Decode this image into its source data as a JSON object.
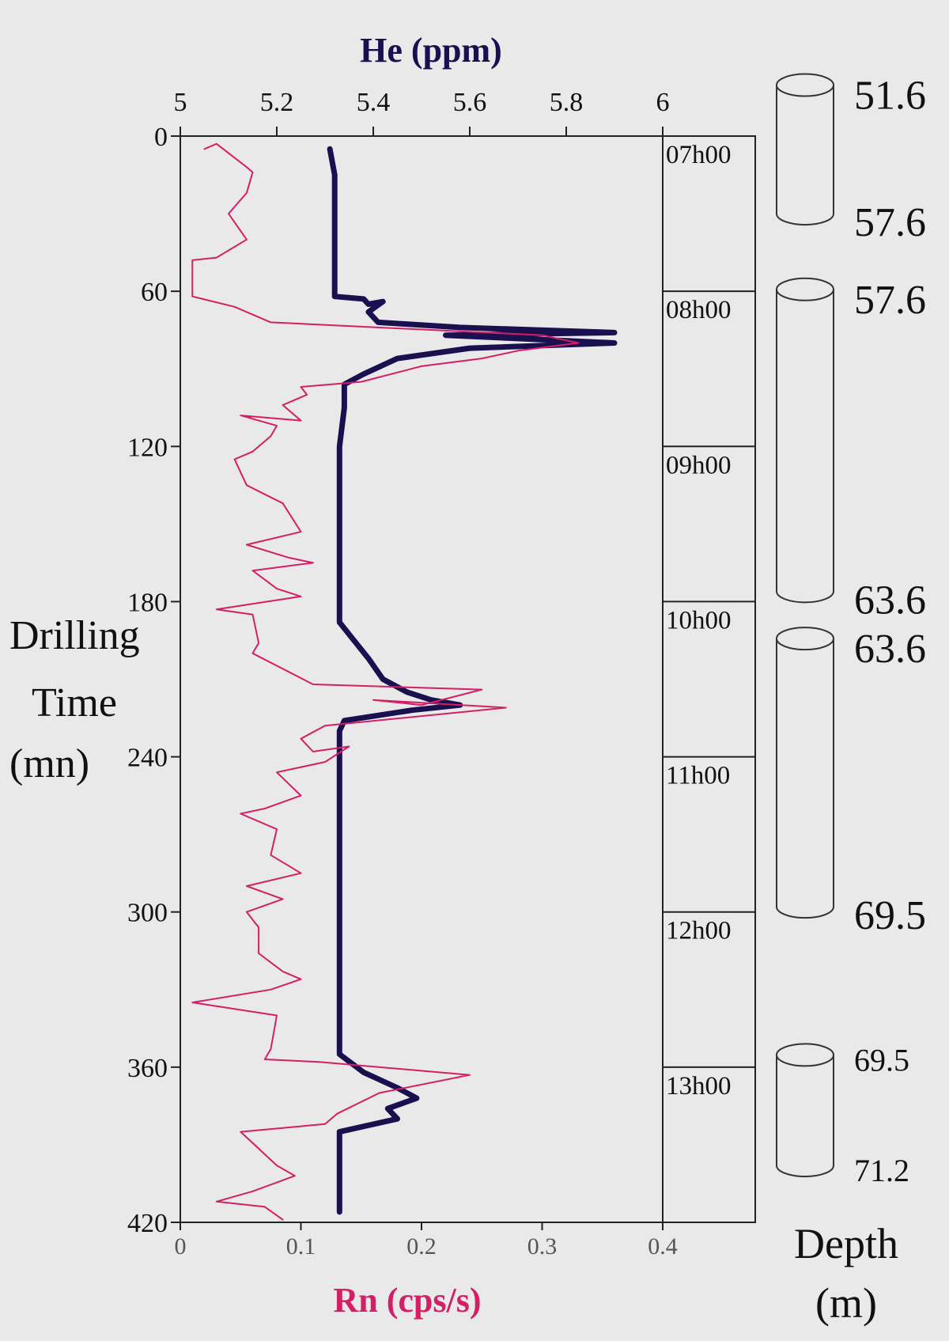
{
  "chart_data": {
    "type": "line",
    "orientation": "vertical-depth-log",
    "title_top_axis": "He (ppm)",
    "title_bottom_axis": "Rn (cps/s)",
    "ylabel_lines": [
      "Drilling",
      "Time",
      "(mn)"
    ],
    "y_axis": {
      "range": [
        0,
        420
      ],
      "ticks": [
        0,
        60,
        120,
        180,
        240,
        300,
        360,
        420
      ],
      "tick_labels": [
        "0",
        "60",
        "120",
        "180",
        "240",
        "300",
        "360",
        "420"
      ],
      "reversed": true
    },
    "top_axis": {
      "label": "He (ppm)",
      "range": [
        5,
        6
      ],
      "ticks": [
        5,
        5.2,
        5.4,
        5.6,
        5.8,
        6
      ],
      "tick_labels": [
        "5",
        "5.2",
        "5.4",
        "5.6",
        "5.8",
        "6"
      ]
    },
    "bottom_axis": {
      "label": "Rn (cps/s)",
      "range": [
        0,
        0.4
      ],
      "ticks": [
        0,
        0.1,
        0.2,
        0.3,
        0.4
      ],
      "tick_labels": [
        "0",
        "0.1",
        "0.2",
        "0.3",
        "0.4"
      ]
    },
    "series": [
      {
        "axis": "top",
        "color": "#1a1050",
        "points": [
          [
            5.31,
            5
          ],
          [
            5.32,
            15
          ],
          [
            5.32,
            30
          ],
          [
            5.32,
            45
          ],
          [
            5.32,
            55
          ],
          [
            5.32,
            62
          ],
          [
            5.38,
            63
          ],
          [
            5.39,
            65
          ],
          [
            5.42,
            64
          ],
          [
            5.39,
            68
          ],
          [
            5.41,
            72
          ],
          [
            5.58,
            74
          ],
          [
            5.9,
            76
          ],
          [
            5.55,
            77
          ],
          [
            5.9,
            80
          ],
          [
            5.6,
            82
          ],
          [
            5.45,
            86
          ],
          [
            5.38,
            92
          ],
          [
            5.34,
            96
          ],
          [
            5.34,
            105
          ],
          [
            5.33,
            120
          ],
          [
            5.33,
            140
          ],
          [
            5.33,
            160
          ],
          [
            5.33,
            175
          ],
          [
            5.33,
            188
          ],
          [
            5.36,
            195
          ],
          [
            5.39,
            202
          ],
          [
            5.42,
            210
          ],
          [
            5.47,
            215
          ],
          [
            5.52,
            218
          ],
          [
            5.58,
            220
          ],
          [
            5.48,
            222
          ],
          [
            5.34,
            226
          ],
          [
            5.33,
            230
          ],
          [
            5.33,
            240
          ],
          [
            5.33,
            260
          ],
          [
            5.33,
            280
          ],
          [
            5.33,
            300
          ],
          [
            5.33,
            320
          ],
          [
            5.33,
            340
          ],
          [
            5.33,
            355
          ],
          [
            5.38,
            362
          ],
          [
            5.45,
            368
          ],
          [
            5.49,
            372
          ],
          [
            5.43,
            376
          ],
          [
            5.45,
            380
          ],
          [
            5.33,
            385
          ],
          [
            5.33,
            390
          ],
          [
            5.33,
            400
          ],
          [
            5.33,
            410
          ],
          [
            5.33,
            416
          ]
        ]
      },
      {
        "axis": "bottom",
        "color": "#d21f66",
        "points": [
          [
            0.02,
            5
          ],
          [
            0.03,
            3
          ],
          [
            0.055,
            12
          ],
          [
            0.06,
            14
          ],
          [
            0.055,
            22
          ],
          [
            0.04,
            30
          ],
          [
            0.055,
            40
          ],
          [
            0.03,
            47
          ],
          [
            0.01,
            48
          ],
          [
            0.01,
            62
          ],
          [
            0.045,
            66
          ],
          [
            0.075,
            72
          ],
          [
            0.3,
            77
          ],
          [
            0.33,
            80
          ],
          [
            0.28,
            83
          ],
          [
            0.25,
            86
          ],
          [
            0.2,
            89
          ],
          [
            0.15,
            95
          ],
          [
            0.1,
            97
          ],
          [
            0.105,
            100
          ],
          [
            0.085,
            104
          ],
          [
            0.1,
            110
          ],
          [
            0.05,
            108
          ],
          [
            0.08,
            112
          ],
          [
            0.075,
            116
          ],
          [
            0.06,
            122
          ],
          [
            0.045,
            125
          ],
          [
            0.055,
            135
          ],
          [
            0.085,
            142
          ],
          [
            0.1,
            153
          ],
          [
            0.055,
            158
          ],
          [
            0.09,
            163
          ],
          [
            0.11,
            165
          ],
          [
            0.06,
            168
          ],
          [
            0.08,
            175
          ],
          [
            0.1,
            178
          ],
          [
            0.03,
            183
          ],
          [
            0.06,
            185
          ],
          [
            0.065,
            196
          ],
          [
            0.06,
            200
          ],
          [
            0.11,
            212
          ],
          [
            0.25,
            214
          ],
          [
            0.2,
            220
          ],
          [
            0.16,
            218
          ],
          [
            0.27,
            221
          ],
          [
            0.12,
            228
          ],
          [
            0.1,
            233
          ],
          [
            0.11,
            238
          ],
          [
            0.14,
            236
          ],
          [
            0.12,
            242
          ],
          [
            0.08,
            246
          ],
          [
            0.1,
            255
          ],
          [
            0.07,
            260
          ],
          [
            0.05,
            262
          ],
          [
            0.08,
            268
          ],
          [
            0.075,
            278
          ],
          [
            0.1,
            285
          ],
          [
            0.055,
            290
          ],
          [
            0.085,
            295
          ],
          [
            0.055,
            300
          ],
          [
            0.065,
            306
          ],
          [
            0.065,
            316
          ],
          [
            0.085,
            323
          ],
          [
            0.1,
            326
          ],
          [
            0.075,
            330
          ],
          [
            0.01,
            335
          ],
          [
            0.08,
            340
          ],
          [
            0.075,
            353
          ],
          [
            0.07,
            357
          ],
          [
            0.115,
            358
          ],
          [
            0.24,
            363
          ],
          [
            0.165,
            370
          ],
          [
            0.13,
            378
          ],
          [
            0.12,
            382
          ],
          [
            0.05,
            385
          ],
          [
            0.08,
            398
          ],
          [
            0.095,
            402
          ],
          [
            0.06,
            408
          ],
          [
            0.03,
            412
          ],
          [
            0.07,
            414
          ],
          [
            0.085,
            419
          ]
        ]
      }
    ],
    "time_labels": [
      {
        "label": "07h00",
        "y": 0
      },
      {
        "label": "08h00",
        "y": 60
      },
      {
        "label": "09h00",
        "y": 120
      },
      {
        "label": "10h00",
        "y": 180
      },
      {
        "label": "11h00",
        "y": 240
      },
      {
        "label": "12h00",
        "y": 300
      },
      {
        "label": "13h00",
        "y": 360
      }
    ],
    "cores": [
      {
        "top": "51.6",
        "bottom": "57.6",
        "y_start": -24,
        "y_end": 30
      },
      {
        "top": "57.6",
        "bottom": "63.6",
        "y_start": 55,
        "y_end": 176
      },
      {
        "top": "63.6",
        "bottom": "69.5",
        "y_start": 190,
        "y_end": 298
      },
      {
        "top": "69.5",
        "bottom": "71.2",
        "y_start": 351,
        "y_end": 398
      }
    ],
    "depth_label_lines": [
      "Depth",
      "(m)"
    ],
    "grid": false
  }
}
